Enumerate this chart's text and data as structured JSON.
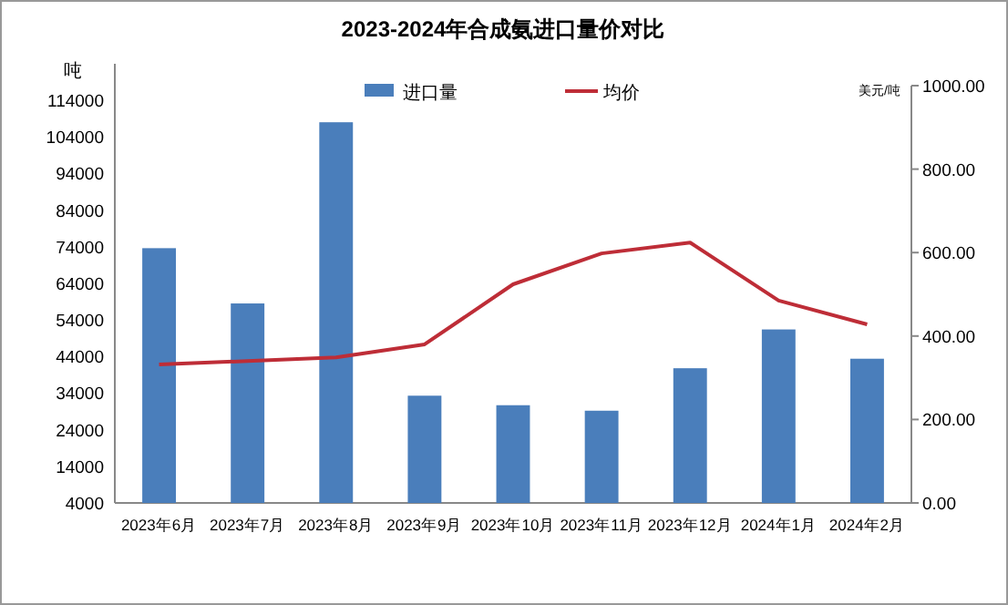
{
  "chart_data": {
    "type": "bar",
    "title": "2023-2024年合成氨进口量价对比",
    "ylabel": "吨",
    "y2label": "美元/吨",
    "categories": [
      "2023年6月",
      "2023年7月",
      "2023年8月",
      "2023年9月",
      "2023年10月",
      "2023年11月",
      "2023年12月",
      "2024年1月",
      "2024年2月"
    ],
    "series": [
      {
        "name": "进口量",
        "color": "#4a7ebb",
        "values": [
          73600,
          58500,
          108000,
          33300,
          30700,
          29200,
          40800,
          51400,
          43400
        ]
      },
      {
        "name": "均价",
        "type": "line",
        "axis": "y2",
        "color": "#be2d37",
        "values": [
          332,
          340,
          349,
          380,
          524,
          598,
          624,
          485,
          428
        ]
      }
    ],
    "ylim": [
      4000,
      118000
    ],
    "yticks": [
      4000,
      14000,
      24000,
      34000,
      44000,
      54000,
      64000,
      74000,
      84000,
      94000,
      104000,
      114000
    ],
    "y2lim": [
      0,
      1000
    ],
    "y2ticks": [
      {
        "value": 0,
        "label": "0.00"
      },
      {
        "value": 200,
        "label": "200.00"
      },
      {
        "value": 400,
        "label": "400.00"
      },
      {
        "value": 600,
        "label": "600.00"
      },
      {
        "value": 800,
        "label": "800.00"
      },
      {
        "value": 1000,
        "label": "1000.00"
      }
    ],
    "legend": "top",
    "grid": false,
    "marker": "none"
  }
}
